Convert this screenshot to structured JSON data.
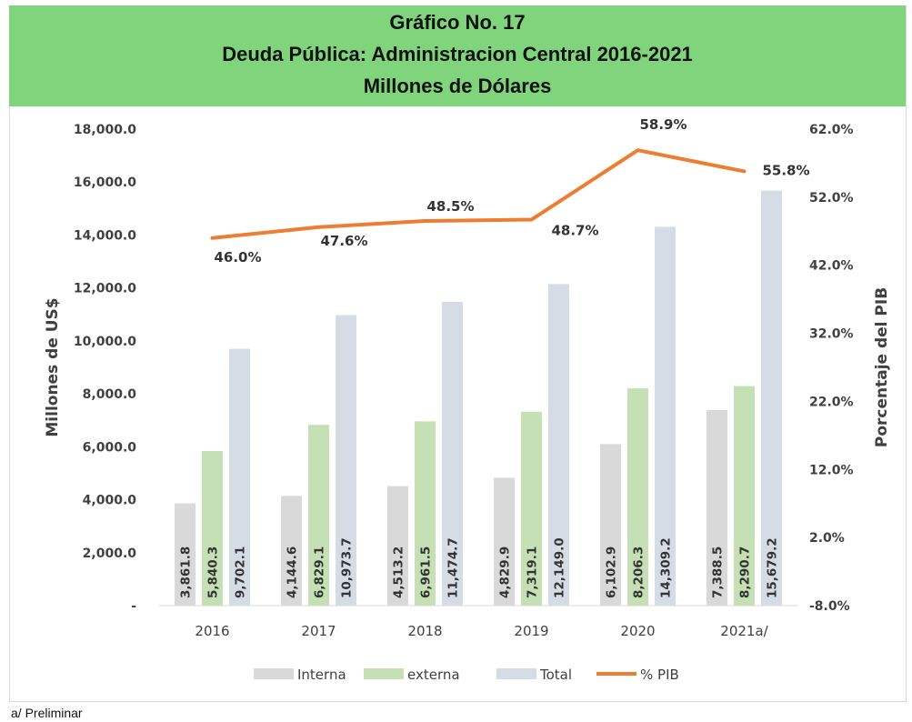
{
  "title_lines": [
    "Gráfico No. 17",
    "Deuda Pública: Administracion Central 2016-2021",
    "Millones de Dólares"
  ],
  "footnote": "a/ Preliminar",
  "colors": {
    "interna": "#d9d9d9",
    "externa": "#c5e0b4",
    "total": "#d6dce5",
    "pib": "#ed7d31",
    "title_band": "#7fd47c"
  },
  "chart_data": {
    "type": "bar",
    "title": "Gráfico No. 17 Deuda Pública: Administracion Central 2016-2021 Millones de Dólares",
    "categories": [
      "2016",
      "2017",
      "2018",
      "2019",
      "2020",
      "2021a/"
    ],
    "series": [
      {
        "name": "Interna",
        "type": "bar",
        "axis": "left",
        "values": [
          3861.8,
          4144.6,
          4513.2,
          4829.9,
          6102.9,
          7388.5
        ],
        "labels": [
          "3,861.8",
          "4,144.6",
          "4,513.2",
          "4,829.9",
          "6,102.9",
          "7,388.5"
        ]
      },
      {
        "name": "externa",
        "type": "bar",
        "axis": "left",
        "values": [
          5840.3,
          6829.1,
          6961.5,
          7319.1,
          8206.3,
          8290.7
        ],
        "labels": [
          "5,840.3",
          "6,829.1",
          "6,961.5",
          "7,319.1",
          "8,206.3",
          "8,290.7"
        ]
      },
      {
        "name": "Total",
        "type": "bar",
        "axis": "left",
        "values": [
          9702.1,
          10973.7,
          11474.7,
          12149.0,
          14309.2,
          15679.2
        ],
        "labels": [
          "9,702.1",
          "10,973.7",
          "11,474.7",
          "12,149.0",
          "14,309.2",
          "15,679.2"
        ]
      },
      {
        "name": "% PIB",
        "type": "line",
        "axis": "right",
        "values": [
          46.0,
          47.6,
          48.5,
          48.7,
          58.9,
          55.8
        ],
        "labels": [
          "46.0%",
          "47.6%",
          "48.5%",
          "48.7%",
          "58.9%",
          "55.8%"
        ]
      }
    ],
    "ylabel": "Millones de US$",
    "ylabel_right": "Porcentaje del PIB",
    "ylim": [
      0,
      18000
    ],
    "ylim_right": [
      -8,
      62
    ],
    "yticks": [
      "-",
      "2,000.0",
      "4,000.0",
      "6,000.0",
      "8,000.0",
      "10,000.0",
      "12,000.0",
      "14,000.0",
      "16,000.0",
      "18,000.0"
    ],
    "yticks_right": [
      "-8.0%",
      "2.0%",
      "12.0%",
      "22.0%",
      "32.0%",
      "42.0%",
      "52.0%",
      "62.0%"
    ],
    "grid": false,
    "legend": "bottom"
  }
}
